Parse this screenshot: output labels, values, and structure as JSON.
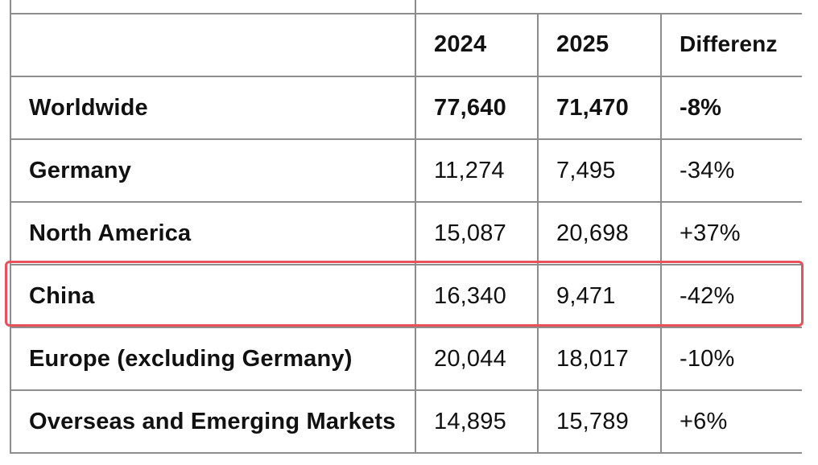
{
  "header": {
    "col0": "",
    "col1": "2024",
    "col2": "2025",
    "col3": "Differenz"
  },
  "rows": [
    {
      "region": "Worldwide",
      "y2024": "77,640",
      "y2025": "71,470",
      "diff": "-8%"
    },
    {
      "region": "Germany",
      "y2024": "11,274",
      "y2025": "7,495",
      "diff": "-34%"
    },
    {
      "region": "North America",
      "y2024": "15,087",
      "y2025": "20,698",
      "diff": "+37%"
    },
    {
      "region": "China",
      "y2024": "16,340",
      "y2025": "9,471",
      "diff": "-42%"
    },
    {
      "region": "Europe (excluding Germany)",
      "y2024": "20,044",
      "y2025": "18,017",
      "diff": "-10%"
    },
    {
      "region": "Overseas and Emerging Markets",
      "y2024": "14,895",
      "y2025": "15,789",
      "diff": "+6%"
    }
  ],
  "highlight": {
    "row_region": "China",
    "color": "#e8505b"
  }
}
